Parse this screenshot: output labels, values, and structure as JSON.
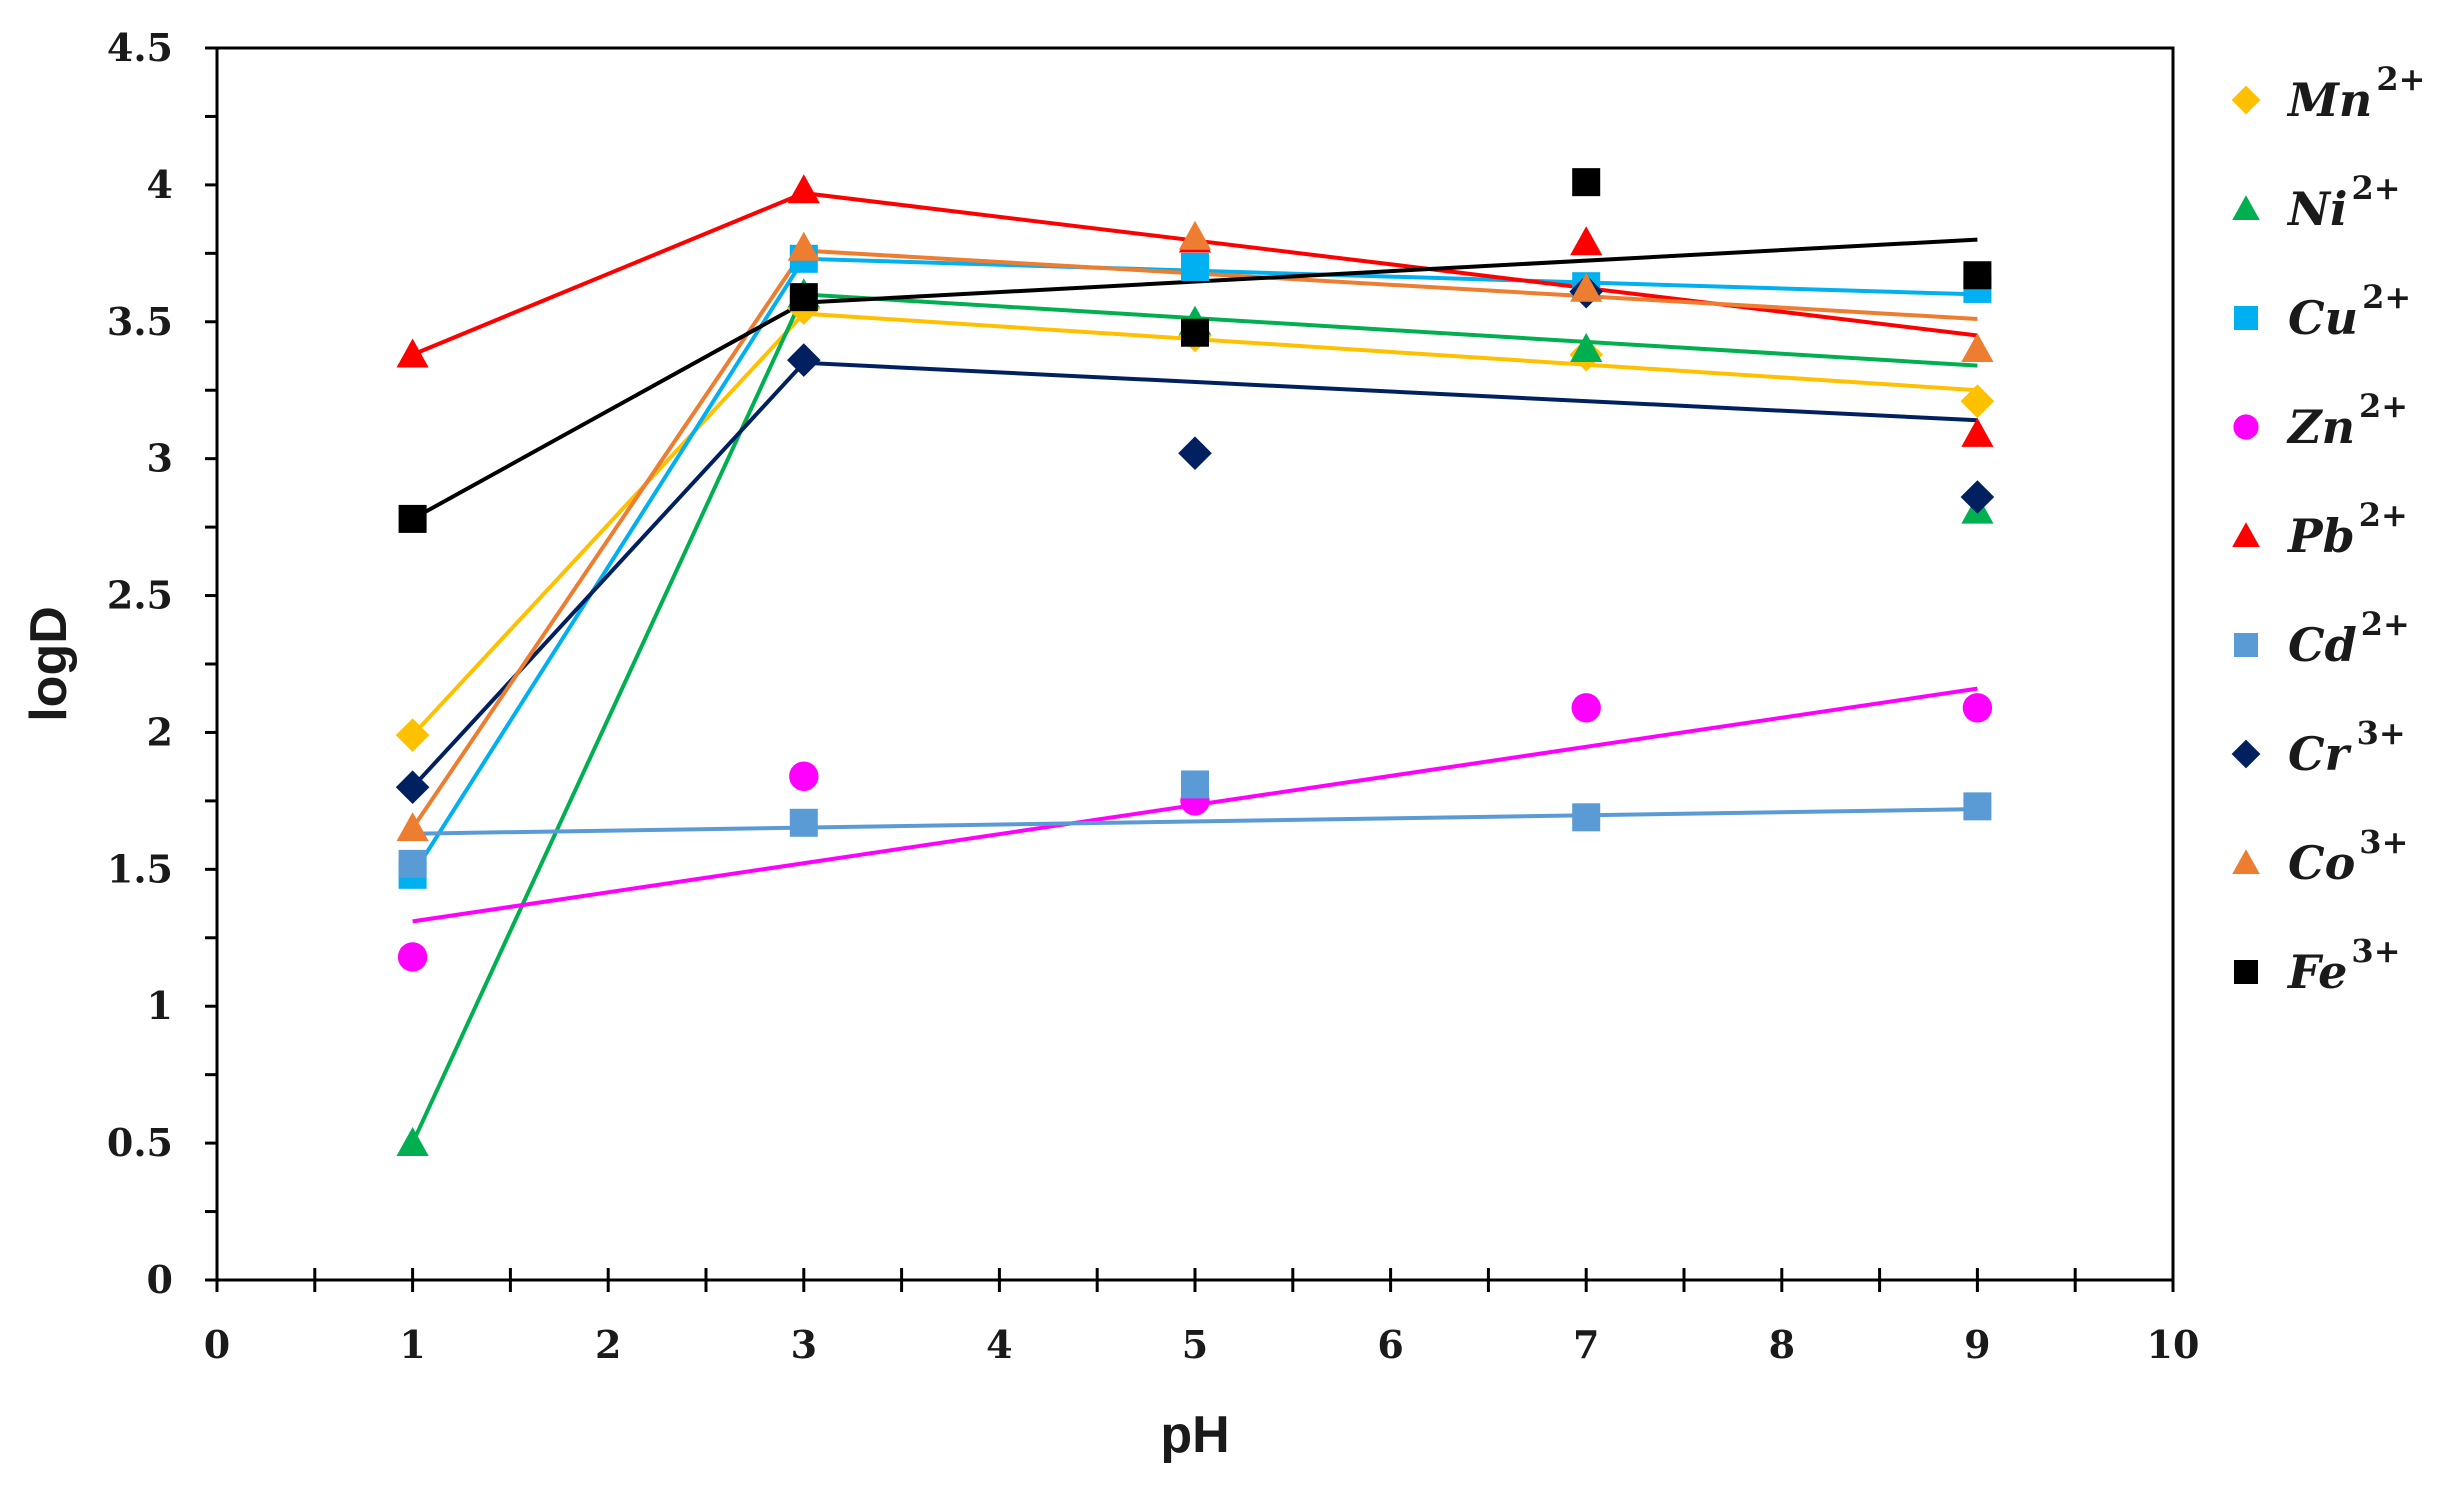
{
  "chart_data": {
    "type": "scatter",
    "title": "",
    "xlabel": "pH",
    "ylabel": "logD",
    "xlim": [
      0,
      10
    ],
    "ylim": [
      0,
      4.5
    ],
    "xticks": [
      "0",
      "1",
      "2",
      "3",
      "4",
      "5",
      "6",
      "7",
      "8",
      "9",
      "10"
    ],
    "yticks": [
      "0",
      "0.5",
      "1",
      "1.5",
      "2",
      "2.5",
      "3",
      "3.5",
      "4",
      "4.5"
    ],
    "legend_position": "right",
    "grid": false,
    "series": [
      {
        "name": "Mn",
        "charge": "2+",
        "color": "#FFC000",
        "marker": "diamond",
        "points": [
          [
            1,
            1.99
          ],
          [
            3,
            3.55
          ],
          [
            5,
            3.45
          ],
          [
            7,
            3.38
          ],
          [
            9,
            3.21
          ]
        ],
        "line": [
          [
            1,
            1.99
          ],
          [
            3,
            3.53
          ],
          [
            9,
            3.25
          ]
        ]
      },
      {
        "name": "Ni",
        "charge": "2+",
        "color": "#00B050",
        "marker": "triangle",
        "points": [
          [
            1,
            0.5
          ],
          [
            3,
            3.6
          ],
          [
            5,
            3.5
          ],
          [
            7,
            3.4
          ],
          [
            9,
            2.81
          ]
        ],
        "line": [
          [
            1,
            0.5
          ],
          [
            3,
            3.6
          ],
          [
            9,
            3.34
          ]
        ]
      },
      {
        "name": "Cu",
        "charge": "2+",
        "color": "#00B0F0",
        "marker": "square",
        "points": [
          [
            1,
            1.48
          ],
          [
            3,
            3.73
          ],
          [
            5,
            3.7
          ],
          [
            7,
            3.63
          ],
          [
            9,
            3.62
          ]
        ],
        "line": [
          [
            1,
            1.48
          ],
          [
            3,
            3.73
          ],
          [
            9,
            3.6
          ]
        ]
      },
      {
        "name": "Zn",
        "charge": "2+",
        "color": "#FF00FF",
        "marker": "circle",
        "points": [
          [
            1,
            1.18
          ],
          [
            3,
            1.84
          ],
          [
            5,
            1.75
          ],
          [
            7,
            2.09
          ],
          [
            9,
            2.09
          ]
        ],
        "line": [
          [
            1,
            1.31
          ],
          [
            9,
            2.16
          ]
        ]
      },
      {
        "name": "Pb",
        "charge": "2+",
        "color": "#FF0000",
        "marker": "triangle",
        "points": [
          [
            1,
            3.38
          ],
          [
            3,
            3.98
          ],
          [
            5,
            3.8
          ],
          [
            7,
            3.79
          ],
          [
            9,
            3.09
          ]
        ],
        "line": [
          [
            1,
            3.38
          ],
          [
            3,
            3.97
          ],
          [
            9,
            3.45
          ]
        ]
      },
      {
        "name": "Cd",
        "charge": "2+",
        "color": "#5B9BD5",
        "marker": "square",
        "points": [
          [
            1,
            1.52
          ],
          [
            3,
            1.67
          ],
          [
            5,
            1.81
          ],
          [
            7,
            1.69
          ],
          [
            9,
            1.73
          ]
        ],
        "line": [
          [
            1,
            1.63
          ],
          [
            9,
            1.72
          ]
        ]
      },
      {
        "name": "Cr",
        "charge": "3+",
        "color": "#002060",
        "marker": "diamond",
        "points": [
          [
            1,
            1.8
          ],
          [
            3,
            3.36
          ],
          [
            5,
            3.02
          ],
          [
            7,
            3.61
          ],
          [
            9,
            2.86
          ]
        ],
        "line": [
          [
            1,
            1.8
          ],
          [
            3,
            3.35
          ],
          [
            9,
            3.14
          ]
        ]
      },
      {
        "name": "Co",
        "charge": "3+",
        "color": "#ED7D31",
        "marker": "triangle",
        "points": [
          [
            1,
            1.65
          ],
          [
            3,
            3.77
          ],
          [
            5,
            3.81
          ],
          [
            7,
            3.62
          ],
          [
            9,
            3.4
          ]
        ],
        "line": [
          [
            1,
            1.65
          ],
          [
            3,
            3.76
          ],
          [
            9,
            3.51
          ]
        ]
      },
      {
        "name": "Fe",
        "charge": "3+",
        "color": "#000000",
        "marker": "square",
        "points": [
          [
            1,
            2.78
          ],
          [
            3,
            3.59
          ],
          [
            5,
            3.46
          ],
          [
            7,
            4.01
          ],
          [
            9,
            3.67
          ]
        ],
        "line": [
          [
            1,
            2.78
          ],
          [
            3,
            3.57
          ],
          [
            9,
            3.8
          ]
        ]
      }
    ]
  }
}
